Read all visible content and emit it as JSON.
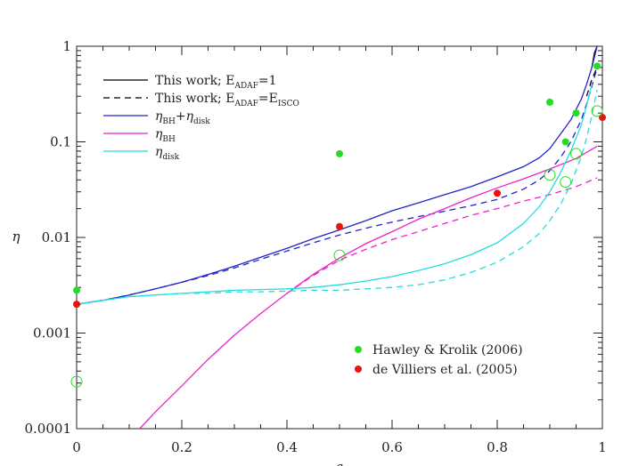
{
  "chart_data": {
    "type": "line",
    "title": "",
    "xlabel": "a",
    "ylabel": "η",
    "xlim": [
      0,
      1
    ],
    "ylim": [
      0.0001,
      1
    ],
    "y_scale": "log",
    "grid": false,
    "legend_position": "top-left",
    "x_ticks": [
      "0",
      "0.2",
      "0.4",
      "0.6",
      "0.8",
      "1"
    ],
    "x_tick_values": [
      0,
      0.2,
      0.4,
      0.6,
      0.8,
      1
    ],
    "y_ticks": [
      "0.0001",
      "0.001",
      "0.01",
      "0.1",
      "1"
    ],
    "y_tick_values": [
      0.0001,
      0.001,
      0.01,
      0.1,
      1
    ],
    "line_legend": [
      {
        "main": "This work; E",
        "sub1": "ADAF",
        "mid": "=1",
        "sub2": "",
        "style": "solid",
        "color": "#000000"
      },
      {
        "main": "This work; E",
        "sub1": "ADAF",
        "mid": "=E",
        "sub2": "ISCO",
        "style": "dashed",
        "color": "#000000"
      },
      {
        "main": "η",
        "sub1": "BH",
        "mid": "+η",
        "sub2": "disk",
        "style": "solid",
        "color": "#2222cc"
      },
      {
        "main": "η",
        "sub1": "BH",
        "mid": "",
        "sub2": "",
        "style": "solid",
        "color": "#ee22cc"
      },
      {
        "main": "η",
        "sub1": "disk",
        "mid": "",
        "sub2": "",
        "style": "solid",
        "color": "#22dddd"
      }
    ],
    "series": [
      {
        "color": "#000000",
        "style": "solid",
        "x": [
          0.98,
          0.985,
          0.99
        ],
        "y": [
          0.6,
          0.85,
          1.0
        ]
      },
      {
        "color": "#000000",
        "style": "dashed",
        "x": [
          0.97,
          0.98,
          0.99
        ],
        "y": [
          0.3,
          0.45,
          0.6
        ]
      },
      {
        "color": "#2222cc",
        "style": "solid",
        "x": [
          0,
          0.05,
          0.1,
          0.15,
          0.2,
          0.25,
          0.3,
          0.35,
          0.4,
          0.45,
          0.5,
          0.55,
          0.6,
          0.65,
          0.7,
          0.75,
          0.8,
          0.85,
          0.88,
          0.9,
          0.92,
          0.94,
          0.96,
          0.97,
          0.98,
          0.99
        ],
        "y": [
          0.002,
          0.0022,
          0.0025,
          0.0029,
          0.0034,
          0.0041,
          0.005,
          0.0062,
          0.0077,
          0.0097,
          0.012,
          0.015,
          0.019,
          0.023,
          0.028,
          0.034,
          0.043,
          0.055,
          0.068,
          0.085,
          0.12,
          0.17,
          0.28,
          0.4,
          0.6,
          1.0
        ]
      },
      {
        "color": "#2222cc",
        "style": "dashed",
        "x": [
          0,
          0.05,
          0.1,
          0.15,
          0.2,
          0.25,
          0.3,
          0.35,
          0.4,
          0.45,
          0.5,
          0.55,
          0.6,
          0.65,
          0.7,
          0.75,
          0.8,
          0.85,
          0.88,
          0.9,
          0.92,
          0.94,
          0.96,
          0.97,
          0.98,
          0.99
        ],
        "y": [
          0.002,
          0.0022,
          0.0025,
          0.0029,
          0.0034,
          0.004,
          0.0048,
          0.0059,
          0.0072,
          0.0088,
          0.0106,
          0.0125,
          0.0145,
          0.0165,
          0.0188,
          0.0215,
          0.025,
          0.032,
          0.04,
          0.05,
          0.068,
          0.1,
          0.17,
          0.25,
          0.38,
          0.6
        ]
      },
      {
        "color": "#ee22cc",
        "style": "solid",
        "x": [
          0.12,
          0.15,
          0.2,
          0.25,
          0.3,
          0.35,
          0.4,
          0.45,
          0.5,
          0.55,
          0.6,
          0.65,
          0.7,
          0.75,
          0.8,
          0.85,
          0.9,
          0.95,
          0.99
        ],
        "y": [
          0.0001,
          0.00015,
          0.00028,
          0.00053,
          0.00095,
          0.0016,
          0.0026,
          0.0041,
          0.0061,
          0.0086,
          0.0115,
          0.0155,
          0.02,
          0.026,
          0.033,
          0.041,
          0.052,
          0.067,
          0.09
        ]
      },
      {
        "color": "#ee22cc",
        "style": "dashed",
        "x": [
          0.4,
          0.45,
          0.5,
          0.55,
          0.6,
          0.65,
          0.7,
          0.75,
          0.8,
          0.85,
          0.9,
          0.95,
          0.99
        ],
        "y": [
          0.0026,
          0.004,
          0.0058,
          0.0075,
          0.0095,
          0.0115,
          0.014,
          0.017,
          0.02,
          0.024,
          0.028,
          0.034,
          0.042
        ]
      },
      {
        "color": "#22dddd",
        "style": "solid",
        "x": [
          0,
          0.05,
          0.1,
          0.15,
          0.2,
          0.25,
          0.3,
          0.35,
          0.4,
          0.45,
          0.5,
          0.55,
          0.6,
          0.65,
          0.7,
          0.75,
          0.8,
          0.85,
          0.88,
          0.9,
          0.92,
          0.94,
          0.96,
          0.97,
          0.98
        ],
        "y": [
          0.002,
          0.0022,
          0.0024,
          0.0025,
          0.0026,
          0.0027,
          0.0028,
          0.00285,
          0.0029,
          0.003,
          0.0032,
          0.0035,
          0.0039,
          0.0045,
          0.0053,
          0.0066,
          0.0088,
          0.014,
          0.021,
          0.03,
          0.047,
          0.08,
          0.15,
          0.24,
          0.4
        ]
      },
      {
        "color": "#22dddd",
        "style": "dashed",
        "x": [
          0,
          0.05,
          0.1,
          0.15,
          0.2,
          0.25,
          0.3,
          0.35,
          0.4,
          0.45,
          0.5,
          0.55,
          0.6,
          0.65,
          0.7,
          0.75,
          0.8,
          0.85,
          0.88,
          0.9,
          0.92,
          0.94,
          0.96,
          0.97,
          0.98,
          0.99
        ],
        "y": [
          0.002,
          0.0022,
          0.0024,
          0.0025,
          0.0026,
          0.0026,
          0.0027,
          0.0027,
          0.00275,
          0.0028,
          0.0028,
          0.0029,
          0.003,
          0.0032,
          0.0036,
          0.0043,
          0.0055,
          0.008,
          0.011,
          0.015,
          0.022,
          0.036,
          0.07,
          0.11,
          0.19,
          0.35
        ]
      }
    ],
    "points": [
      {
        "color": "#22dd22",
        "filled": true,
        "x": [
          0,
          0.5,
          0.9,
          0.93,
          0.95,
          0.99
        ],
        "y": [
          0.0028,
          0.075,
          0.26,
          0.1,
          0.2,
          0.62
        ]
      },
      {
        "color": "#ee1111",
        "filled": true,
        "x": [
          0,
          0.5,
          0.8,
          1.0
        ],
        "y": [
          0.002,
          0.013,
          0.029,
          0.18
        ]
      },
      {
        "color": "#22dd22",
        "filled": false,
        "x": [
          0,
          0.5,
          0.9,
          0.93,
          0.95,
          0.99
        ],
        "y": [
          0.00031,
          0.0065,
          0.045,
          0.038,
          0.075,
          0.21
        ]
      }
    ],
    "point_legend": [
      {
        "label": "Hawley & Krolik (2006)",
        "color": "#22dd22"
      },
      {
        "label": "de Villiers et al. (2005)",
        "color": "#ee1111"
      }
    ]
  }
}
